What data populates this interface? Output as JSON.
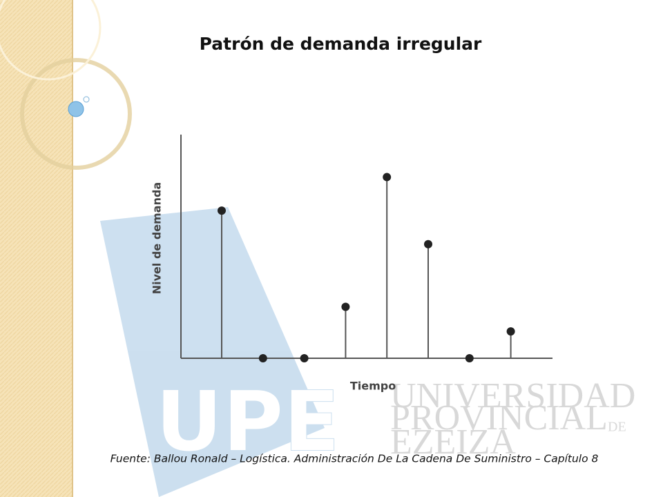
{
  "chart_data": {
    "type": "stem",
    "title": "Patrón de demanda irregular",
    "x_label": "Tiempo",
    "y_label": "Nivel de demanda",
    "categories": [
      null,
      null,
      null,
      null,
      null,
      null,
      null,
      null
    ],
    "values": [
      6.6,
      0,
      0,
      2.3,
      8.1,
      5.1,
      0,
      1.2
    ],
    "color": "#222222",
    "ylim": [
      0,
      10
    ]
  },
  "slide": {
    "source": "Fuente: Ballou Ronald – Logística. Administración De La Cadena De Suministro – Capítulo 8",
    "watermark": [
      "UPE",
      "UNIVERSIDAD",
      "PROVINCIAL",
      "DE",
      "EZEIZA"
    ]
  }
}
